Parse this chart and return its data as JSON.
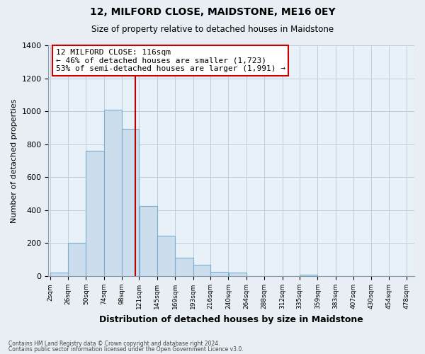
{
  "title": "12, MILFORD CLOSE, MAIDSTONE, ME16 0EY",
  "subtitle": "Size of property relative to detached houses in Maidstone",
  "xlabel": "Distribution of detached houses by size in Maidstone",
  "ylabel": "Number of detached properties",
  "bar_color": "#ccdded",
  "bar_edge_color": "#7ab0cc",
  "bins": [
    2,
    26,
    50,
    74,
    98,
    121,
    145,
    169,
    193,
    216,
    240,
    264,
    288,
    312,
    335,
    359,
    383,
    407,
    430,
    454,
    478
  ],
  "bin_labels": [
    "2sqm",
    "26sqm",
    "50sqm",
    "74sqm",
    "98sqm",
    "121sqm",
    "145sqm",
    "169sqm",
    "193sqm",
    "216sqm",
    "240sqm",
    "264sqm",
    "288sqm",
    "312sqm",
    "335sqm",
    "359sqm",
    "383sqm",
    "407sqm",
    "430sqm",
    "454sqm",
    "478sqm"
  ],
  "counts": [
    20,
    200,
    760,
    1010,
    895,
    425,
    245,
    110,
    70,
    25,
    20,
    0,
    0,
    0,
    10,
    0,
    0,
    0,
    0,
    0
  ],
  "property_size": 116,
  "vline_color": "#bb0000",
  "annotation_title": "12 MILFORD CLOSE: 116sqm",
  "annotation_line1": "← 46% of detached houses are smaller (1,723)",
  "annotation_line2": "53% of semi-detached houses are larger (1,991) →",
  "annotation_box_facecolor": "#ffffff",
  "annotation_box_edgecolor": "#cc0000",
  "ylim": [
    0,
    1400
  ],
  "yticks": [
    0,
    200,
    400,
    600,
    800,
    1000,
    1200,
    1400
  ],
  "footnote1": "Contains HM Land Registry data © Crown copyright and database right 2024.",
  "footnote2": "Contains public sector information licensed under the Open Government Licence v3.0.",
  "background_color": "#e8eef4",
  "plot_bg_color": "#e8f0f8",
  "grid_color": "#c0ccd8",
  "spine_color": "#8899aa"
}
